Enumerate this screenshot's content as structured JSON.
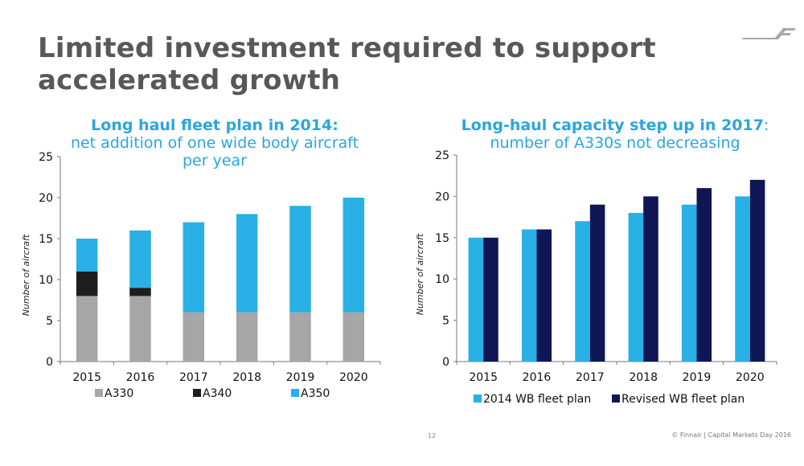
{
  "slide": {
    "title_line1": "Limited investment required to support",
    "title_line2": "accelerated growth",
    "logo": "finnair-logo-icon",
    "page_number": "12",
    "footer": "© Finnair  | Capital Markets Day 2016"
  },
  "colors": {
    "title": "#58585a",
    "accent": "#2aa6de",
    "a330": "#a6a6a6",
    "a340": "#1e1e1e",
    "a350": "#29b0e6",
    "plan2014": "#29b0e6",
    "revised": "#0f1654"
  },
  "chart_data": [
    {
      "type": "bar",
      "stacked": true,
      "title_bold": "Long haul fleet plan in 2014:",
      "title_line2": "net addition of one wide body aircraft",
      "title_line3": "per year",
      "xlabel": "",
      "ylabel": "Number of aircraft",
      "ylim": [
        0,
        25
      ],
      "yticks": [
        "0",
        "5",
        "10",
        "15",
        "20",
        "25"
      ],
      "categories": [
        "2015",
        "2016",
        "2017",
        "2018",
        "2019",
        "2020"
      ],
      "series": [
        {
          "name": "A330",
          "values": [
            8,
            8,
            6,
            6,
            6,
            6
          ]
        },
        {
          "name": "A340",
          "values": [
            3,
            1,
            0,
            0,
            0,
            0
          ]
        },
        {
          "name": "A350",
          "values": [
            4,
            7,
            11,
            12,
            13,
            14
          ]
        }
      ],
      "legend": "bottom",
      "grid": false
    },
    {
      "type": "bar",
      "stacked": false,
      "title_bold": "Long-haul capacity step up in 2017",
      "title_suffix": ":",
      "title_line2": "number of A330s not decreasing",
      "xlabel": "",
      "ylabel": "Number of aircraft",
      "ylim": [
        0,
        25
      ],
      "yticks": [
        "0",
        "5",
        "10",
        "15",
        "20",
        "25"
      ],
      "categories": [
        "2015",
        "2016",
        "2017",
        "2018",
        "2019",
        "2020"
      ],
      "series": [
        {
          "name": "2014 WB fleet plan",
          "values": [
            15,
            16,
            17,
            18,
            19,
            20
          ]
        },
        {
          "name": "Revised WB fleet plan",
          "values": [
            15,
            16,
            19,
            20,
            21,
            22
          ]
        }
      ],
      "legend": "bottom",
      "grid": false
    }
  ]
}
